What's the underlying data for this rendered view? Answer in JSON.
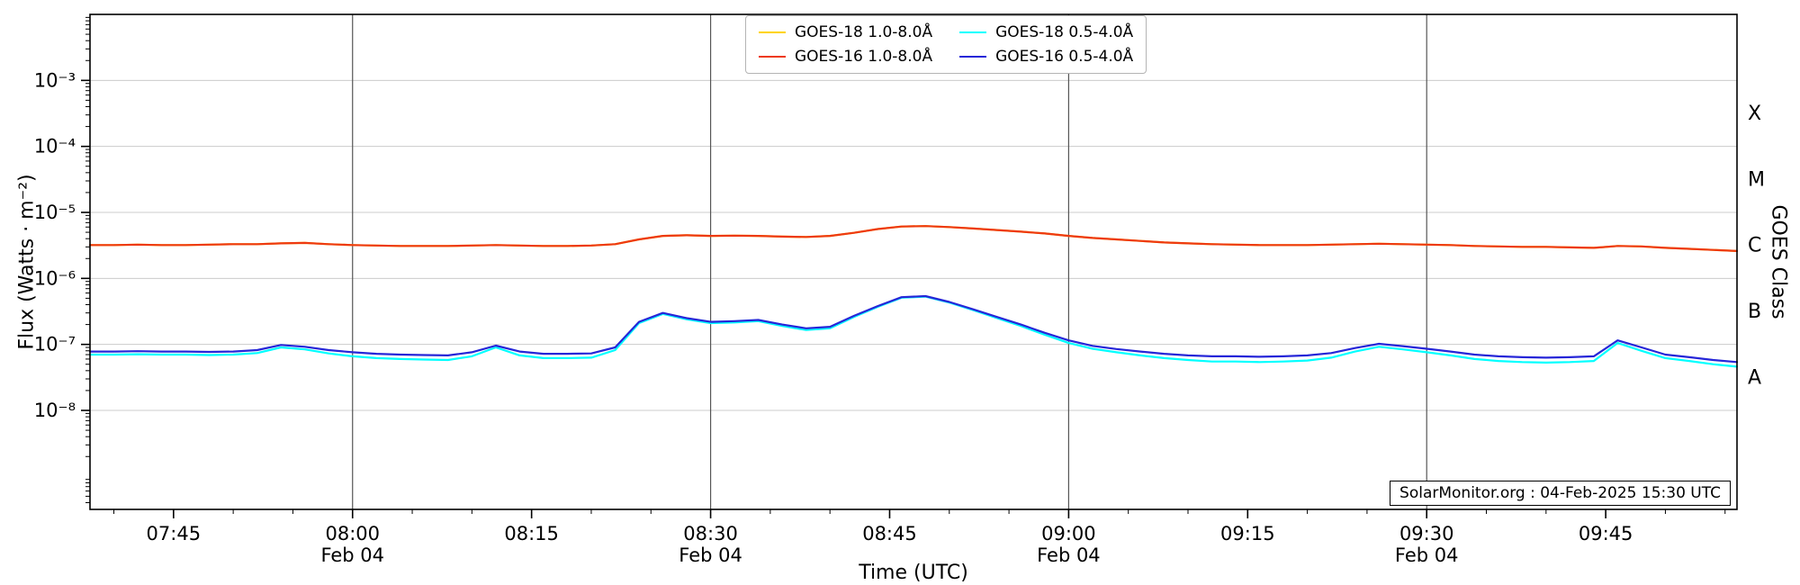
{
  "figure": {
    "xlabel": "Time (UTC)",
    "ylabel": "Flux (Watts · m⁻²)",
    "right_axis_label": "GOES Class",
    "watermark": "SolarMonitor.org : 04-Feb-2025 15:30 UTC"
  },
  "chart_data": {
    "type": "line",
    "title": "",
    "xlabel": "Time (UTC)",
    "ylabel": "Flux (Watts · m⁻²)",
    "y_scale": "log",
    "legend_position": "top-center",
    "x_axis": {
      "unit": "minutes-utc",
      "range": [
        458,
        596
      ],
      "minor_tick_step": 5,
      "major_ticks": [
        {
          "t": 465,
          "label": "07:45",
          "sub": ""
        },
        {
          "t": 480,
          "label": "08:00",
          "sub": "Feb 04"
        },
        {
          "t": 495,
          "label": "08:15",
          "sub": ""
        },
        {
          "t": 510,
          "label": "08:30",
          "sub": "Feb 04"
        },
        {
          "t": 525,
          "label": "08:45",
          "sub": ""
        },
        {
          "t": 540,
          "label": "09:00",
          "sub": "Feb 04"
        },
        {
          "t": 555,
          "label": "09:15",
          "sub": ""
        },
        {
          "t": 570,
          "label": "09:30",
          "sub": "Feb 04"
        },
        {
          "t": 585,
          "label": "09:45",
          "sub": ""
        }
      ]
    },
    "y_axis": {
      "scale": "log",
      "exp_range": [
        -9.5,
        -2.0
      ],
      "ticks": [
        {
          "exp": -3,
          "label": "10⁻³"
        },
        {
          "exp": -4,
          "label": "10⁻⁴"
        },
        {
          "exp": -5,
          "label": "10⁻⁵"
        },
        {
          "exp": -6,
          "label": "10⁻⁶"
        },
        {
          "exp": -7,
          "label": "10⁻⁷"
        },
        {
          "exp": -8,
          "label": "10⁻⁸"
        }
      ]
    },
    "right_axis": {
      "labels": [
        {
          "exp": -3.5,
          "label": "X"
        },
        {
          "exp": -4.5,
          "label": "M"
        },
        {
          "exp": -5.5,
          "label": "C"
        },
        {
          "exp": -6.5,
          "label": "B"
        },
        {
          "exp": -7.5,
          "label": "A"
        }
      ]
    },
    "gridlines": {
      "vertical_t": [
        480,
        510,
        540,
        570
      ],
      "horizontal_exp": [
        -3,
        -4,
        -5,
        -6,
        -7,
        -8
      ],
      "vertical_color": "#555555",
      "horizontal_color": "#cccccc"
    },
    "x": [
      458,
      460,
      462,
      464,
      466,
      468,
      470,
      472,
      474,
      476,
      478,
      480,
      482,
      484,
      486,
      488,
      490,
      492,
      494,
      496,
      498,
      500,
      502,
      504,
      506,
      508,
      510,
      512,
      514,
      516,
      518,
      520,
      522,
      524,
      526,
      528,
      530,
      532,
      534,
      536,
      538,
      540,
      542,
      544,
      546,
      548,
      550,
      552,
      554,
      556,
      558,
      560,
      562,
      564,
      566,
      568,
      570,
      572,
      574,
      576,
      578,
      580,
      582,
      584,
      586,
      588,
      590,
      592,
      594,
      596
    ],
    "series": [
      {
        "name": "GOES-18 1.0-8.0Å",
        "color": "#ffd400",
        "values": [
          3.2e-06,
          3.2e-06,
          3.25e-06,
          3.2e-06,
          3.2e-06,
          3.25e-06,
          3.3e-06,
          3.3e-06,
          3.4e-06,
          3.45e-06,
          3.3e-06,
          3.2e-06,
          3.15e-06,
          3.1e-06,
          3.1e-06,
          3.1e-06,
          3.15e-06,
          3.2e-06,
          3.15e-06,
          3.1e-06,
          3.1e-06,
          3.15e-06,
          3.3e-06,
          3.9e-06,
          4.4e-06,
          4.5e-06,
          4.4e-06,
          4.45e-06,
          4.4e-06,
          4.3e-06,
          4.25e-06,
          4.4e-06,
          4.9e-06,
          5.6e-06,
          6.1e-06,
          6.2e-06,
          6e-06,
          5.7e-06,
          5.4e-06,
          5.1e-06,
          4.8e-06,
          4.4e-06,
          4.1e-06,
          3.9e-06,
          3.7e-06,
          3.5e-06,
          3.4e-06,
          3.3e-06,
          3.25e-06,
          3.2e-06,
          3.2e-06,
          3.2e-06,
          3.25e-06,
          3.3e-06,
          3.35e-06,
          3.3e-06,
          3.25e-06,
          3.2e-06,
          3.1e-06,
          3.05e-06,
          3e-06,
          3e-06,
          2.95e-06,
          2.9e-06,
          3.1e-06,
          3.05e-06,
          2.9e-06,
          2.8e-06,
          2.7e-06,
          2.6e-06
        ]
      },
      {
        "name": "GOES-16 1.0-8.0Å",
        "color": "#ee3911",
        "values": [
          3.2e-06,
          3.2e-06,
          3.25e-06,
          3.2e-06,
          3.2e-06,
          3.25e-06,
          3.3e-06,
          3.3e-06,
          3.4e-06,
          3.45e-06,
          3.3e-06,
          3.2e-06,
          3.15e-06,
          3.1e-06,
          3.1e-06,
          3.1e-06,
          3.15e-06,
          3.2e-06,
          3.15e-06,
          3.1e-06,
          3.1e-06,
          3.15e-06,
          3.3e-06,
          3.9e-06,
          4.4e-06,
          4.5e-06,
          4.4e-06,
          4.45e-06,
          4.4e-06,
          4.3e-06,
          4.25e-06,
          4.4e-06,
          4.9e-06,
          5.6e-06,
          6.1e-06,
          6.2e-06,
          6e-06,
          5.7e-06,
          5.4e-06,
          5.1e-06,
          4.8e-06,
          4.4e-06,
          4.1e-06,
          3.9e-06,
          3.7e-06,
          3.5e-06,
          3.4e-06,
          3.3e-06,
          3.25e-06,
          3.2e-06,
          3.2e-06,
          3.2e-06,
          3.25e-06,
          3.3e-06,
          3.35e-06,
          3.3e-06,
          3.25e-06,
          3.2e-06,
          3.1e-06,
          3.05e-06,
          3e-06,
          3e-06,
          2.95e-06,
          2.9e-06,
          3.1e-06,
          3.05e-06,
          2.9e-06,
          2.8e-06,
          2.7e-06,
          2.6e-06
        ]
      },
      {
        "name": "GOES-18 0.5-4.0Å",
        "color": "#00ffff",
        "values": [
          7e-08,
          7e-08,
          7.1e-08,
          7e-08,
          7e-08,
          6.9e-08,
          7e-08,
          7.4e-08,
          9e-08,
          8.4e-08,
          7.3e-08,
          6.6e-08,
          6.2e-08,
          6e-08,
          5.9e-08,
          5.8e-08,
          6.6e-08,
          9e-08,
          6.8e-08,
          6.2e-08,
          6.2e-08,
          6.3e-08,
          8.2e-08,
          2.1e-07,
          2.9e-07,
          2.4e-07,
          2.1e-07,
          2.15e-07,
          2.25e-07,
          1.9e-07,
          1.65e-07,
          1.75e-07,
          2.6e-07,
          3.7e-07,
          5.1e-07,
          5.3e-07,
          4.3e-07,
          3.3e-07,
          2.5e-07,
          1.9e-07,
          1.4e-07,
          1.05e-07,
          8.6e-08,
          7.6e-08,
          6.8e-08,
          6.2e-08,
          5.8e-08,
          5.5e-08,
          5.5e-08,
          5.4e-08,
          5.5e-08,
          5.7e-08,
          6.3e-08,
          7.8e-08,
          9.2e-08,
          8.4e-08,
          7.6e-08,
          6.8e-08,
          6e-08,
          5.6e-08,
          5.4e-08,
          5.3e-08,
          5.4e-08,
          5.6e-08,
          1.05e-07,
          8e-08,
          6.2e-08,
          5.6e-08,
          5e-08,
          4.6e-08
        ]
      },
      {
        "name": "GOES-16 0.5-4.0Å",
        "color": "#2626d8",
        "values": [
          7.8e-08,
          7.8e-08,
          7.9e-08,
          7.8e-08,
          7.8e-08,
          7.7e-08,
          7.8e-08,
          8.2e-08,
          9.8e-08,
          9.2e-08,
          8.2e-08,
          7.6e-08,
          7.2e-08,
          7e-08,
          6.9e-08,
          6.8e-08,
          7.6e-08,
          9.6e-08,
          7.8e-08,
          7.2e-08,
          7.2e-08,
          7.3e-08,
          9e-08,
          2.2e-07,
          3e-07,
          2.5e-07,
          2.2e-07,
          2.25e-07,
          2.35e-07,
          2e-07,
          1.75e-07,
          1.85e-07,
          2.7e-07,
          3.8e-07,
          5.2e-07,
          5.4e-07,
          4.4e-07,
          3.4e-07,
          2.6e-07,
          2e-07,
          1.5e-07,
          1.15e-07,
          9.5e-08,
          8.5e-08,
          7.8e-08,
          7.2e-08,
          6.8e-08,
          6.6e-08,
          6.6e-08,
          6.5e-08,
          6.6e-08,
          6.8e-08,
          7.4e-08,
          8.8e-08,
          1.02e-07,
          9.4e-08,
          8.6e-08,
          7.8e-08,
          7e-08,
          6.6e-08,
          6.4e-08,
          6.3e-08,
          6.4e-08,
          6.6e-08,
          1.15e-07,
          9e-08,
          7e-08,
          6.4e-08,
          5.8e-08,
          5.4e-08
        ]
      }
    ]
  }
}
